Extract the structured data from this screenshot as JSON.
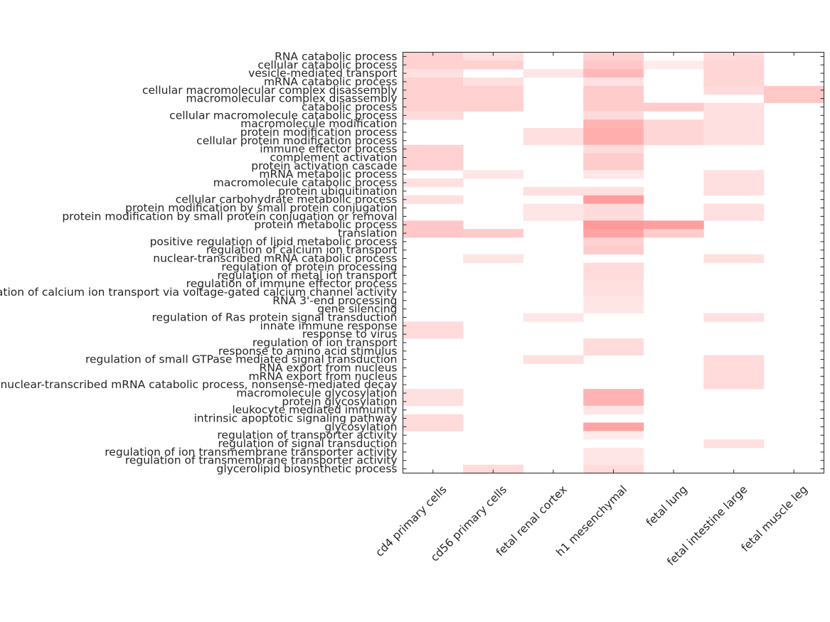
{
  "chart_data": {
    "type": "heatmap",
    "title": "",
    "xlabel": "",
    "ylabel": "",
    "color_low": "#ffffff",
    "color_high": "#ff0000",
    "value_range": [
      0,
      1
    ],
    "columns": [
      "cd4 primary cells",
      "cd56 primary cells",
      "fetal renal cortex",
      "h1 mesenchymal",
      "fetal lung",
      "fetal intestine large",
      "fetal muscle leg"
    ],
    "rows": [
      "RNA catabolic process",
      "cellular catabolic process",
      "vesicle-mediated transport",
      "mRNA catabolic process",
      "cellular macromolecular complex disassembly",
      "macromolecular complex disassembly",
      "catabolic process",
      "cellular macromolecule catabolic process",
      "macromolecule modification",
      "protein modification process",
      "cellular protein modification process",
      "immune effector process",
      "complement activation",
      "protein activation cascade",
      "mRNA metabolic process",
      "macromolecule catabolic process",
      "protein ubiquitination",
      "cellular carbohydrate metabolic process",
      "protein modification by small protein conjugation",
      "protein modification by small protein conjugation or removal",
      "protein metabolic process",
      "translation",
      "positive regulation of lipid metabolic process",
      "regulation of calcium ion transport",
      "nuclear-transcribed mRNA catabolic process",
      "regulation of protein processing",
      "regulation of metal ion transport",
      "regulation of immune effector process",
      "regulation of calcium ion transport via voltage-gated calcium channel activity",
      "RNA 3'-end processing",
      "gene silencing",
      "regulation of Ras protein signal transduction",
      "innate immune response",
      "response to virus",
      "regulation of ion transport",
      "response to amino acid stimulus",
      "regulation of small GTPase mediated signal transduction",
      "RNA export from nucleus",
      "mRNA export from nucleus",
      "nuclear-transcribed mRNA catabolic process, nonsense-mediated decay",
      "macromolecule glycosylation",
      "protein glycosylation",
      "leukocyte mediated immunity",
      "intrinsic apoptotic signaling pathway",
      "glycosylation",
      "regulation of transporter activity",
      "regulation of signal transduction",
      "regulation of ion transmembrane transporter activity",
      "regulation of transmembrane transporter activity",
      "glycerolipid biosynthetic process"
    ],
    "values": [
      [
        0.18,
        0.12,
        0,
        0.18,
        0,
        0.14,
        0
      ],
      [
        0.18,
        0.18,
        0,
        0.22,
        0.08,
        0.16,
        0
      ],
      [
        0.12,
        0,
        0.1,
        0.28,
        0,
        0.16,
        0
      ],
      [
        0.18,
        0.12,
        0,
        0.12,
        0,
        0.16,
        0
      ],
      [
        0.18,
        0.18,
        0,
        0.2,
        0,
        0.14,
        0.22
      ],
      [
        0.18,
        0.18,
        0,
        0.2,
        0,
        0,
        0.22
      ],
      [
        0.18,
        0.18,
        0,
        0.2,
        0.2,
        0.12,
        0
      ],
      [
        0.14,
        0,
        0,
        0.14,
        0,
        0.12,
        0
      ],
      [
        0,
        0,
        0,
        0.3,
        0.16,
        0.12,
        0
      ],
      [
        0,
        0,
        0.12,
        0.32,
        0.16,
        0.12,
        0
      ],
      [
        0,
        0,
        0.12,
        0.32,
        0.16,
        0.12,
        0
      ],
      [
        0.18,
        0,
        0,
        0.14,
        0,
        0,
        0
      ],
      [
        0.18,
        0,
        0,
        0.2,
        0,
        0,
        0
      ],
      [
        0.18,
        0,
        0,
        0.2,
        0,
        0,
        0
      ],
      [
        0,
        0.1,
        0,
        0.1,
        0,
        0.12,
        0
      ],
      [
        0.12,
        0,
        0,
        0,
        0,
        0.12,
        0
      ],
      [
        0,
        0,
        0.12,
        0.12,
        0,
        0.12,
        0
      ],
      [
        0.12,
        0,
        0,
        0.38,
        0,
        0,
        0
      ],
      [
        0,
        0,
        0.1,
        0.14,
        0,
        0.12,
        0
      ],
      [
        0,
        0,
        0.1,
        0.14,
        0,
        0.12,
        0
      ],
      [
        0.22,
        0,
        0,
        0.4,
        0.38,
        0,
        0
      ],
      [
        0.22,
        0.2,
        0,
        0.36,
        0.2,
        0,
        0
      ],
      [
        0,
        0,
        0,
        0.18,
        0,
        0,
        0
      ],
      [
        0,
        0,
        0,
        0.2,
        0,
        0,
        0
      ],
      [
        0,
        0.1,
        0,
        0,
        0,
        0.12,
        0
      ],
      [
        0,
        0,
        0,
        0.14,
        0,
        0,
        0
      ],
      [
        0,
        0,
        0,
        0.14,
        0,
        0,
        0
      ],
      [
        0,
        0,
        0,
        0.12,
        0,
        0,
        0
      ],
      [
        0,
        0,
        0,
        0.12,
        0,
        0,
        0
      ],
      [
        0,
        0,
        0,
        0.1,
        0,
        0,
        0
      ],
      [
        0,
        0,
        0,
        0.1,
        0,
        0,
        0
      ],
      [
        0,
        0,
        0.1,
        0,
        0,
        0.12,
        0
      ],
      [
        0.14,
        0,
        0,
        0,
        0,
        0,
        0
      ],
      [
        0.14,
        0,
        0,
        0,
        0,
        0,
        0
      ],
      [
        0,
        0,
        0,
        0.14,
        0,
        0,
        0
      ],
      [
        0,
        0,
        0,
        0.14,
        0,
        0,
        0
      ],
      [
        0,
        0,
        0.12,
        0,
        0,
        0.14,
        0
      ],
      [
        0,
        0,
        0,
        0,
        0,
        0.14,
        0
      ],
      [
        0,
        0,
        0,
        0,
        0,
        0.14,
        0
      ],
      [
        0,
        0,
        0,
        0,
        0,
        0.14,
        0
      ],
      [
        0.12,
        0,
        0,
        0.3,
        0,
        0,
        0
      ],
      [
        0.12,
        0,
        0,
        0.3,
        0,
        0,
        0
      ],
      [
        0,
        0,
        0,
        0.1,
        0,
        0,
        0
      ],
      [
        0.14,
        0,
        0,
        0,
        0,
        0,
        0
      ],
      [
        0.14,
        0,
        0,
        0.36,
        0,
        0,
        0
      ],
      [
        0,
        0,
        0,
        0.08,
        0,
        0,
        0
      ],
      [
        0,
        0,
        0,
        0,
        0,
        0.12,
        0
      ],
      [
        0,
        0,
        0,
        0.1,
        0,
        0,
        0
      ],
      [
        0,
        0,
        0,
        0.1,
        0,
        0,
        0
      ],
      [
        0,
        0.14,
        0,
        0.14,
        0,
        0,
        0
      ]
    ]
  }
}
